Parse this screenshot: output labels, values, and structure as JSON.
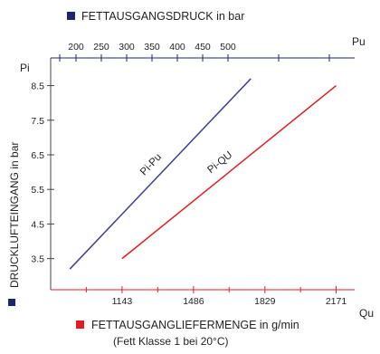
{
  "chart_data": {
    "type": "line",
    "top_legend": {
      "text": "FETTAUSGANGSDRUCK in bar",
      "color": "#1e2470"
    },
    "bottom_legend": {
      "text": "FETTAUSGANGLIEFERMENGE in g/min",
      "color": "#e21c23"
    },
    "bottom_note": "(Fett Klasse 1 bei 20°C)",
    "ylabel": "DRUCKLUFTEINGANG in bar",
    "y_axis_name": "Pi",
    "top_axis_name": "Pu",
    "bottom_axis_name": "Qu",
    "y_ticks": [
      3.5,
      4.5,
      5.5,
      6.5,
      7.5,
      8.5
    ],
    "y_tick_labels": [
      "3.5",
      "4.5",
      "5.5",
      "6.5",
      "7.5",
      "8.5"
    ],
    "ylim": [
      2.6,
      9.3
    ],
    "top_ticks": [
      200,
      250,
      300,
      350,
      400,
      450,
      500
    ],
    "top_tick_labels": [
      "200",
      "250",
      "300",
      "350",
      "400",
      "450",
      "500"
    ],
    "top_xlim": [
      150,
      750
    ],
    "bottom_ticks": [
      1143,
      1486,
      1829,
      2171
    ],
    "bottom_tick_labels": [
      "1143",
      "1486",
      "1829",
      "2171"
    ],
    "bottom_xlim": [
      800,
      2260
    ],
    "series": [
      {
        "name": "Pi-Pu",
        "axis": "top",
        "color": "#3b3f8f",
        "x": [
          188,
          545
        ],
        "y": [
          3.2,
          8.7
        ]
      },
      {
        "name": "Pi-QU",
        "axis": "bottom",
        "color": "#e21c23",
        "x": [
          1143,
          2171
        ],
        "y": [
          3.5,
          8.5
        ]
      }
    ]
  }
}
